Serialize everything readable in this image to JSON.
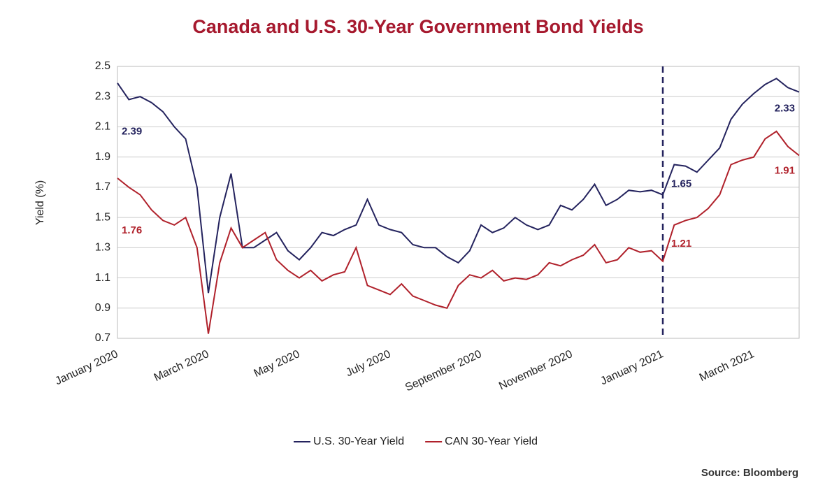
{
  "chart_data": {
    "type": "line",
    "title": "Canada and U.S. 30-Year Government Bond Yields",
    "y_label": "Yield (%)",
    "source": "Source: Bloomberg",
    "categories": [
      "January 2020",
      null,
      null,
      null,
      null,
      null,
      null,
      null,
      "March 2020",
      null,
      null,
      null,
      null,
      null,
      null,
      null,
      "May 2020",
      null,
      null,
      null,
      null,
      null,
      null,
      null,
      "July 2020",
      null,
      null,
      null,
      null,
      null,
      null,
      null,
      "September 2020",
      null,
      null,
      null,
      null,
      null,
      null,
      null,
      "November 2020",
      null,
      null,
      null,
      null,
      null,
      null,
      null,
      "January 2021",
      null,
      null,
      null,
      null,
      null,
      null,
      null,
      "March 2021",
      null,
      null,
      null,
      null
    ],
    "series": [
      {
        "name": "U.S. 30-Year Yield",
        "color": "#24235e",
        "values": [
          2.39,
          2.28,
          2.3,
          2.26,
          2.2,
          2.1,
          2.02,
          1.7,
          1.0,
          1.5,
          1.79,
          1.3,
          1.3,
          1.35,
          1.4,
          1.28,
          1.22,
          1.3,
          1.4,
          1.38,
          1.42,
          1.45,
          1.62,
          1.45,
          1.42,
          1.4,
          1.32,
          1.3,
          1.3,
          1.24,
          1.2,
          1.28,
          1.45,
          1.4,
          1.43,
          1.5,
          1.45,
          1.42,
          1.45,
          1.58,
          1.55,
          1.62,
          1.72,
          1.58,
          1.62,
          1.68,
          1.67,
          1.68,
          1.65,
          1.85,
          1.84,
          1.8,
          1.88,
          1.96,
          2.15,
          2.25,
          2.32,
          2.38,
          2.42,
          2.36,
          2.33
        ],
        "value_labels": [
          "2.39",
          null,
          null,
          null,
          null,
          null,
          null,
          null,
          null,
          null,
          null,
          null,
          null,
          null,
          null,
          null,
          null,
          null,
          null,
          null,
          null,
          null,
          null,
          null,
          null,
          null,
          null,
          null,
          null,
          null,
          null,
          null,
          null,
          null,
          null,
          null,
          null,
          null,
          null,
          null,
          null,
          null,
          null,
          null,
          null,
          null,
          null,
          null,
          "1.65",
          null,
          null,
          null,
          null,
          null,
          null,
          null,
          null,
          null,
          null,
          null,
          "2.33"
        ]
      },
      {
        "name": "CAN 30-Year Yield",
        "color": "#b0212b",
        "values": [
          1.76,
          1.7,
          1.65,
          1.55,
          1.48,
          1.45,
          1.5,
          1.3,
          0.73,
          1.2,
          1.43,
          1.3,
          1.35,
          1.4,
          1.22,
          1.15,
          1.1,
          1.15,
          1.08,
          1.12,
          1.14,
          1.3,
          1.05,
          1.02,
          0.99,
          1.06,
          0.98,
          0.95,
          0.92,
          0.9,
          1.05,
          1.12,
          1.1,
          1.15,
          1.08,
          1.1,
          1.09,
          1.12,
          1.2,
          1.18,
          1.22,
          1.25,
          1.32,
          1.2,
          1.22,
          1.3,
          1.27,
          1.28,
          1.21,
          1.45,
          1.48,
          1.5,
          1.56,
          1.65,
          1.85,
          1.88,
          1.9,
          2.02,
          2.07,
          1.97,
          1.91
        ],
        "value_labels": [
          "1.76",
          null,
          null,
          null,
          null,
          null,
          null,
          null,
          null,
          null,
          null,
          null,
          null,
          null,
          null,
          null,
          null,
          null,
          null,
          null,
          null,
          null,
          null,
          null,
          null,
          null,
          null,
          null,
          null,
          null,
          null,
          null,
          null,
          null,
          null,
          null,
          null,
          null,
          null,
          null,
          null,
          null,
          null,
          null,
          null,
          null,
          null,
          null,
          "1.21",
          null,
          null,
          null,
          null,
          null,
          null,
          null,
          null,
          null,
          null,
          null,
          "1.91"
        ]
      }
    ],
    "ylim": [
      0.7,
      2.5
    ],
    "yticks": [
      0.7,
      0.9,
      1.1,
      1.3,
      1.5,
      1.7,
      1.9,
      2.1,
      2.3,
      2.5
    ],
    "grid": true,
    "vline_category": "January 2021",
    "legend": "bottom"
  }
}
